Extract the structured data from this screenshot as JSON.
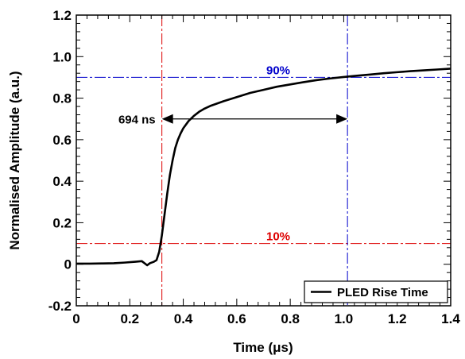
{
  "chart_data": {
    "type": "line",
    "title": "",
    "xlabel": "Time (μs)",
    "ylabel": "Normalised Amplitude (a.u.)",
    "xlim": [
      0,
      1.4
    ],
    "ylim": [
      -0.2,
      1.2
    ],
    "x_ticks": [
      0,
      0.2,
      0.4,
      0.6,
      0.8,
      1.0,
      1.2,
      1.4
    ],
    "x_tick_labels": [
      "0",
      "0.2",
      "0.4",
      "0.6",
      "0.8",
      "1.0",
      "1.2",
      "1.4"
    ],
    "y_ticks": [
      -0.2,
      0,
      0.2,
      0.4,
      0.6,
      0.8,
      1.0,
      1.2
    ],
    "y_tick_labels": [
      "-0.2",
      "0",
      "0.2",
      "0.4",
      "0.6",
      "0.8",
      "1.0",
      "1.2"
    ],
    "grid": false,
    "legend": {
      "position": "bottom-right",
      "entries": [
        "PLED Rise Time"
      ]
    },
    "series": [
      {
        "name": "PLED Rise Time",
        "color": "#000000",
        "x": [
          0,
          0.05,
          0.1,
          0.14,
          0.18,
          0.22,
          0.245,
          0.255,
          0.265,
          0.275,
          0.29,
          0.3,
          0.31,
          0.32,
          0.33,
          0.34,
          0.35,
          0.36,
          0.37,
          0.38,
          0.39,
          0.4,
          0.42,
          0.44,
          0.46,
          0.48,
          0.5,
          0.55,
          0.6,
          0.65,
          0.7,
          0.75,
          0.8,
          0.85,
          0.9,
          0.95,
          1.0,
          1.05,
          1.1,
          1.15,
          1.2,
          1.25,
          1.3,
          1.35,
          1.4
        ],
        "y": [
          0.003,
          0.003,
          0.004,
          0.005,
          0.008,
          0.012,
          0.015,
          0.005,
          -0.005,
          0.005,
          0.012,
          0.02,
          0.06,
          0.14,
          0.24,
          0.34,
          0.43,
          0.5,
          0.56,
          0.6,
          0.63,
          0.655,
          0.69,
          0.715,
          0.735,
          0.75,
          0.762,
          0.785,
          0.805,
          0.825,
          0.84,
          0.855,
          0.866,
          0.877,
          0.887,
          0.895,
          0.902,
          0.908,
          0.914,
          0.92,
          0.925,
          0.93,
          0.934,
          0.938,
          0.942
        ]
      }
    ],
    "reference_lines": [
      {
        "axis": "y",
        "value": 0.9,
        "color": "#0000cc",
        "label": "90%"
      },
      {
        "axis": "y",
        "value": 0.1,
        "color": "#dd0000",
        "label": "10%"
      },
      {
        "axis": "x",
        "value": 0.32,
        "color": "#dd0000"
      },
      {
        "axis": "x",
        "value": 1.014,
        "color": "#0000cc"
      }
    ],
    "annotation": {
      "text": "694 ns",
      "from_x": 0.32,
      "to_x": 1.014,
      "y": 0.7
    }
  }
}
